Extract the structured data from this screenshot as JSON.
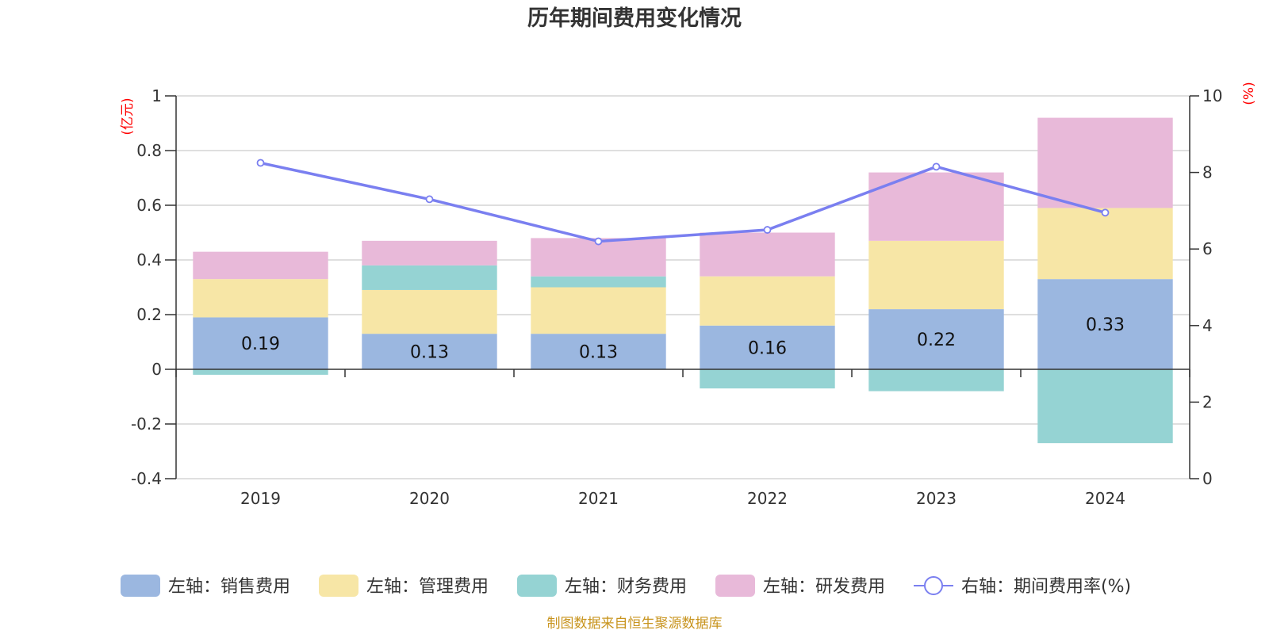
{
  "chart_data": {
    "type": "bar",
    "stacked": true,
    "title": "历年期间费用变化情况",
    "categories": [
      "2019",
      "2020",
      "2021",
      "2022",
      "2023",
      "2024"
    ],
    "left_axis": {
      "unit_label": "(亿元)",
      "ylim": [
        -0.4,
        1
      ],
      "ticks": [
        -0.4,
        -0.2,
        0,
        0.2,
        0.4,
        0.6,
        0.8,
        1
      ],
      "tick_labels": [
        "-0.4",
        "-0.2",
        "0",
        "0.2",
        "0.4",
        "0.6",
        "0.8",
        "1"
      ]
    },
    "right_axis": {
      "unit_label": "(%)",
      "ylim": [
        0,
        10
      ],
      "ticks": [
        0,
        2,
        4,
        6,
        8,
        10
      ],
      "tick_labels": [
        "0",
        "2",
        "4",
        "6",
        "8",
        "10"
      ]
    },
    "series": [
      {
        "name": "左轴：销售费用",
        "axis": "left",
        "color": "#9bb7e0",
        "values": [
          0.19,
          0.13,
          0.13,
          0.16,
          0.22,
          0.33
        ],
        "labels": [
          "0.19",
          "0.13",
          "0.13",
          "0.16",
          "0.22",
          "0.33"
        ]
      },
      {
        "name": "左轴：管理费用",
        "axis": "left",
        "color": "#f7e6a6",
        "values": [
          0.14,
          0.16,
          0.17,
          0.18,
          0.25,
          0.26
        ]
      },
      {
        "name": "左轴：财务费用",
        "axis": "left",
        "color": "#95d3d3",
        "values": [
          -0.02,
          0.09,
          0.04,
          -0.07,
          -0.08,
          -0.27
        ]
      },
      {
        "name": "左轴：研发费用",
        "axis": "left",
        "color": "#e8b9d9",
        "values": [
          0.1,
          0.09,
          0.14,
          0.16,
          0.25,
          0.33
        ]
      },
      {
        "name": "右轴：期间费用率(%)",
        "axis": "right",
        "type": "line",
        "color": "#7a7ff0",
        "values": [
          8.25,
          7.3,
          6.2,
          6.5,
          8.15,
          6.95
        ]
      }
    ],
    "source": "制图数据来自恒生聚源数据库"
  }
}
